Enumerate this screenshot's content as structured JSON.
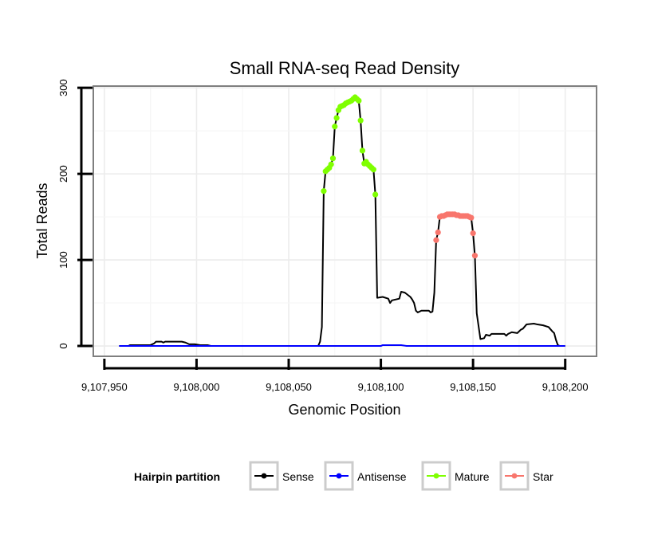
{
  "chart_data": {
    "type": "line",
    "title": "Small RNA-seq Read Density",
    "xlabel": "Genomic Position",
    "ylabel": "Total Reads",
    "xlim": [
      9107944,
      9108217
    ],
    "ylim": [
      -12,
      302
    ],
    "x_ticks": [
      9107950,
      9108000,
      9108050,
      9108100,
      9108150,
      9108200
    ],
    "x_tick_labels": [
      "9,107,950",
      "9,108,000",
      "9,108,050",
      "9,108,100",
      "9,108,150",
      "9,108,200"
    ],
    "y_ticks": [
      0,
      100,
      200,
      300
    ],
    "y_tick_labels": [
      "0",
      "100",
      "200",
      "300"
    ],
    "grid": true,
    "legend": {
      "title": "Hairpin partition",
      "position": "bottom",
      "entries": [
        {
          "label": "Sense",
          "color": "#000000"
        },
        {
          "label": "Antisense",
          "color": "#0000ff"
        },
        {
          "label": "Mature",
          "color": "#7fff00"
        },
        {
          "label": "Star",
          "color": "#f8766d"
        }
      ]
    },
    "series": [
      {
        "name": "Sense",
        "style": "line",
        "color": "#000000",
        "points": [
          [
            9107958,
            0
          ],
          [
            9107963,
            0
          ],
          [
            9107964,
            1
          ],
          [
            9107975,
            1
          ],
          [
            9107977,
            3
          ],
          [
            9107978,
            5
          ],
          [
            9107981,
            5
          ],
          [
            9107982,
            4
          ],
          [
            9107983,
            5
          ],
          [
            9107992,
            5
          ],
          [
            9107994,
            4
          ],
          [
            9107996,
            2
          ],
          [
            9107999,
            2
          ],
          [
            9108002,
            1
          ],
          [
            9108006,
            1
          ],
          [
            9108008,
            0
          ],
          [
            9108066,
            0
          ],
          [
            9108067,
            5
          ],
          [
            9108068,
            22
          ],
          [
            9108069,
            180
          ],
          [
            9108070,
            203
          ],
          [
            9108072,
            207
          ],
          [
            9108073,
            211
          ],
          [
            9108074,
            218
          ],
          [
            9108075,
            255
          ],
          [
            9108076,
            265
          ],
          [
            9108077,
            274
          ],
          [
            9108078,
            278
          ],
          [
            9108080,
            280
          ],
          [
            9108082,
            283
          ],
          [
            9108084,
            285
          ],
          [
            9108085,
            287
          ],
          [
            9108086,
            289
          ],
          [
            9108087,
            287
          ],
          [
            9108088,
            285
          ],
          [
            9108089,
            262
          ],
          [
            9108090,
            227
          ],
          [
            9108091,
            212
          ],
          [
            9108092,
            214
          ],
          [
            9108094,
            209
          ],
          [
            9108096,
            205
          ],
          [
            9108097,
            176
          ],
          [
            9108098,
            56
          ],
          [
            9108101,
            57
          ],
          [
            9108104,
            55
          ],
          [
            9108105,
            50
          ],
          [
            9108106,
            53
          ],
          [
            9108110,
            55
          ],
          [
            9108111,
            63
          ],
          [
            9108113,
            62
          ],
          [
            9108116,
            57
          ],
          [
            9108117,
            54
          ],
          [
            9108118,
            50
          ],
          [
            9108119,
            41
          ],
          [
            9108120,
            39
          ],
          [
            9108122,
            41
          ],
          [
            9108126,
            41
          ],
          [
            9108127,
            39
          ],
          [
            9108128,
            40
          ],
          [
            9108129,
            62
          ],
          [
            9108130,
            123
          ],
          [
            9108131,
            132
          ],
          [
            9108132,
            150
          ],
          [
            9108134,
            151
          ],
          [
            9108136,
            153
          ],
          [
            9108140,
            153
          ],
          [
            9108143,
            151
          ],
          [
            9108147,
            151
          ],
          [
            9108149,
            149
          ],
          [
            9108150,
            131
          ],
          [
            9108151,
            105
          ],
          [
            9108152,
            38
          ],
          [
            9108154,
            8
          ],
          [
            9108156,
            9
          ],
          [
            9108157,
            13
          ],
          [
            9108159,
            12
          ],
          [
            9108160,
            14
          ],
          [
            9108164,
            14
          ],
          [
            9108167,
            14
          ],
          [
            9108168,
            12
          ],
          [
            9108169,
            14
          ],
          [
            9108171,
            16
          ],
          [
            9108174,
            15
          ],
          [
            9108176,
            19
          ],
          [
            9108177,
            20
          ],
          [
            9108179,
            25
          ],
          [
            9108183,
            26
          ],
          [
            9108185,
            25
          ],
          [
            9108188,
            24
          ],
          [
            9108191,
            22
          ],
          [
            9108193,
            17
          ],
          [
            9108194,
            15
          ],
          [
            9108195,
            7
          ],
          [
            9108196,
            1
          ],
          [
            9108197,
            0
          ],
          [
            9108200,
            0
          ]
        ]
      },
      {
        "name": "Antisense",
        "style": "line",
        "color": "#0000ff",
        "points": [
          [
            9107958,
            0
          ],
          [
            9108100,
            0
          ],
          [
            9108101,
            1
          ],
          [
            9108111,
            1
          ],
          [
            9108114,
            0
          ],
          [
            9108200,
            0
          ]
        ]
      },
      {
        "name": "Mature",
        "style": "points",
        "color": "#7fff00",
        "points": [
          [
            9108069,
            180
          ],
          [
            9108070,
            203
          ],
          [
            9108071,
            205
          ],
          [
            9108072,
            207
          ],
          [
            9108073,
            211
          ],
          [
            9108074,
            218
          ],
          [
            9108075,
            255
          ],
          [
            9108076,
            265
          ],
          [
            9108077,
            274
          ],
          [
            9108078,
            278
          ],
          [
            9108079,
            279
          ],
          [
            9108080,
            280
          ],
          [
            9108081,
            282
          ],
          [
            9108082,
            283
          ],
          [
            9108083,
            284
          ],
          [
            9108084,
            285
          ],
          [
            9108085,
            287
          ],
          [
            9108086,
            289
          ],
          [
            9108087,
            287
          ],
          [
            9108088,
            285
          ],
          [
            9108089,
            262
          ],
          [
            9108090,
            227
          ],
          [
            9108091,
            212
          ],
          [
            9108092,
            214
          ],
          [
            9108093,
            211
          ],
          [
            9108094,
            209
          ],
          [
            9108095,
            207
          ],
          [
            9108096,
            205
          ],
          [
            9108097,
            176
          ]
        ]
      },
      {
        "name": "Star",
        "style": "points",
        "color": "#f8766d",
        "points": [
          [
            9108130,
            123
          ],
          [
            9108131,
            132
          ],
          [
            9108132,
            150
          ],
          [
            9108133,
            151
          ],
          [
            9108134,
            151
          ],
          [
            9108135,
            152
          ],
          [
            9108136,
            153
          ],
          [
            9108137,
            153
          ],
          [
            9108138,
            153
          ],
          [
            9108139,
            153
          ],
          [
            9108140,
            153
          ],
          [
            9108141,
            152
          ],
          [
            9108142,
            152
          ],
          [
            9108143,
            151
          ],
          [
            9108144,
            151
          ],
          [
            9108145,
            151
          ],
          [
            9108146,
            151
          ],
          [
            9108147,
            151
          ],
          [
            9108148,
            150
          ],
          [
            9108149,
            149
          ],
          [
            9108150,
            131
          ],
          [
            9108151,
            105
          ]
        ]
      }
    ]
  }
}
